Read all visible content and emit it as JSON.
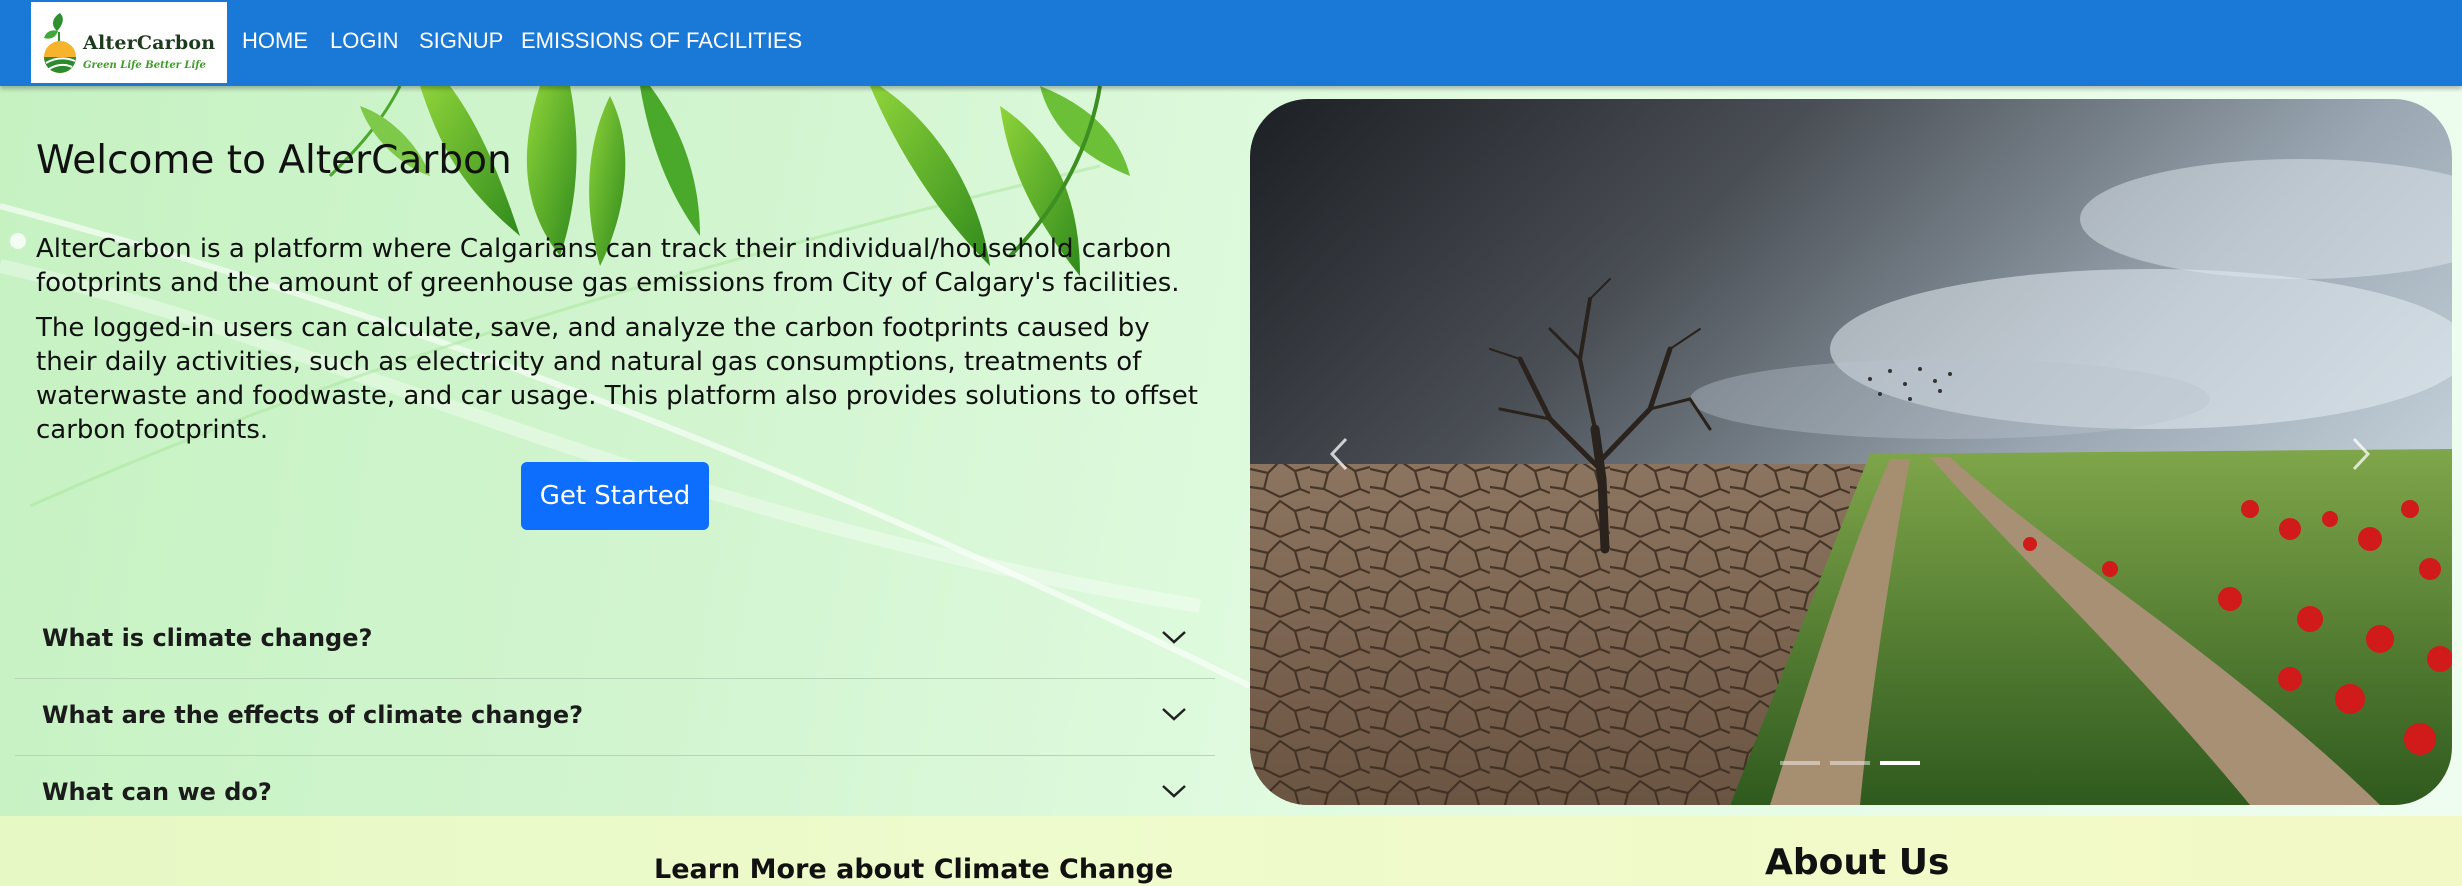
{
  "navbar": {
    "logo": {
      "brand": "AlterCarbon",
      "tagline": "Green Life Better Life"
    },
    "links": [
      "HOME",
      "LOGIN",
      "SIGNUP",
      "EMISSIONS OF FACILITIES"
    ]
  },
  "hero": {
    "title": "Welcome to AlterCarbon",
    "paragraph_1": "AlterCarbon is a platform where Calgarians can track their individual/household carbon footprints and the amount of greenhouse gas emissions from City of Calgary's facilities.",
    "paragraph_2": "The logged-in users can calculate, save, and analyze the carbon footprints caused by their daily activities, such as electricity and natural gas consumptions, treatments of waterwaste and foodwaste, and car usage. This platform also provides solutions to offset carbon footprints.",
    "cta_label": "Get Started"
  },
  "accordion": [
    {
      "question": "What is climate change?"
    },
    {
      "question": "What are the effects of climate change?"
    },
    {
      "question": "What can we do?"
    }
  ],
  "carousel": {
    "slide_count": 3,
    "active_slide": 3
  },
  "sections": {
    "learn_more_title": "Learn More about Climate Change",
    "about_title": "About Us"
  },
  "colors": {
    "navbar": "#1a78d6",
    "button": "#0d6efd"
  }
}
